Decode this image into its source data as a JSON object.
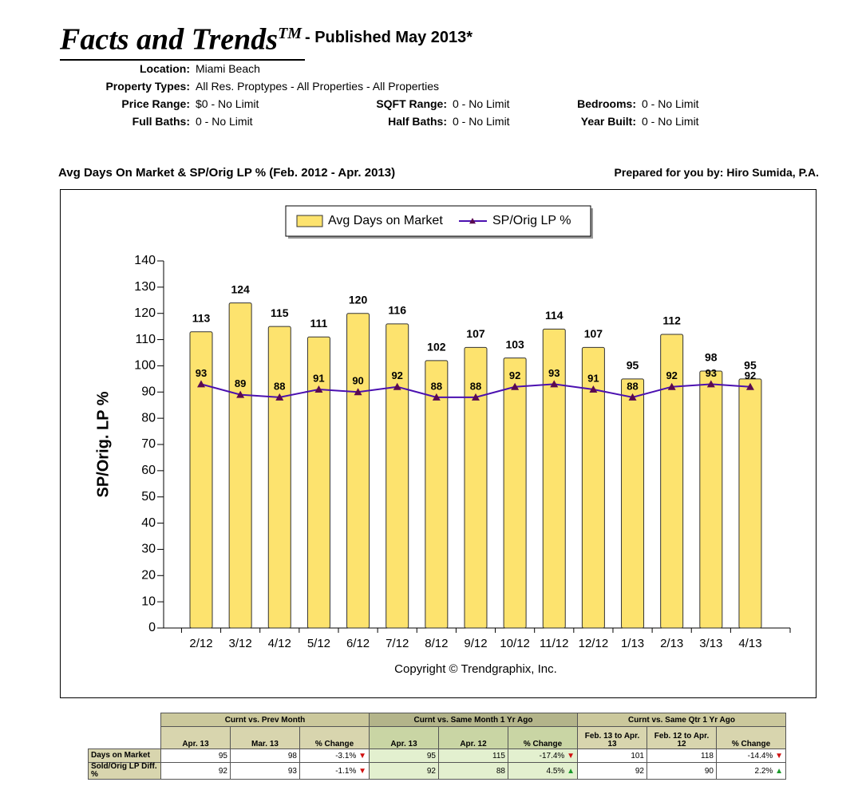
{
  "header": {
    "title": "Facts and Trends",
    "tm": "TM",
    "published": "- Published May 2013*"
  },
  "filters": [
    {
      "label": "Location:",
      "value": "Miami Beach"
    },
    {
      "label": "Property Types:",
      "value": "All Res. Proptypes - All Properties - All Properties"
    },
    {
      "label": "Price Range:",
      "value": "$0 - No Limit"
    },
    {
      "label": "SQFT Range:",
      "value": "0 - No Limit"
    },
    {
      "label": "Bedrooms:",
      "value": "0 - No Limit"
    },
    {
      "label": "Full Baths:",
      "value": "0 - No Limit"
    },
    {
      "label": "Half Baths:",
      "value": "0 - No Limit"
    },
    {
      "label": "Year Built:",
      "value": "0 - No Limit"
    }
  ],
  "chart_data": {
    "type": "bar",
    "title": "Avg Days On Market & SP/Orig LP % (Feb. 2012 - Apr. 2013)",
    "prepared": "Prepared for you by: Hiro Sumida, P.A.",
    "y_label": "SP/Orig. LP %",
    "copyright": "Copyright © Trendgraphix, Inc.",
    "categories": [
      "2/12",
      "3/12",
      "4/12",
      "5/12",
      "6/12",
      "7/12",
      "8/12",
      "9/12",
      "10/12",
      "11/12",
      "12/12",
      "1/13",
      "2/13",
      "3/13",
      "4/13"
    ],
    "series": [
      {
        "name": "Avg Days on Market",
        "type": "bar",
        "color": "#fde36e",
        "values": [
          113,
          124,
          115,
          111,
          120,
          116,
          102,
          107,
          103,
          114,
          107,
          95,
          112,
          98,
          95
        ]
      },
      {
        "name": "SP/Orig LP %",
        "type": "line",
        "color": "#4b10b0",
        "values": [
          93,
          89,
          88,
          91,
          90,
          92,
          88,
          88,
          92,
          93,
          91,
          88,
          92,
          93,
          92
        ]
      }
    ],
    "ylim": [
      0,
      140
    ],
    "yticks": [
      0,
      10,
      20,
      30,
      40,
      50,
      60,
      70,
      80,
      90,
      100,
      110,
      120,
      130,
      140
    ]
  },
  "table": {
    "groups": [
      "Curnt vs. Prev Month",
      "Curnt vs. Same Month 1 Yr Ago",
      "Curnt vs. Same Qtr 1 Yr Ago"
    ],
    "columns": [
      "Apr. 13",
      "Mar. 13",
      "% Change",
      "Apr. 13",
      "Apr. 12",
      "% Change",
      "Feb. 13 to Apr. 13",
      "Feb. 12 to Apr. 12",
      "% Change"
    ],
    "rows": [
      [
        "Days on Market",
        95,
        98,
        "-3.1%",
        95,
        115,
        "-17.4%",
        101,
        118,
        "-14.4%"
      ],
      [
        "Sold/Orig LP Diff. %",
        92,
        93,
        "-1.1%",
        92,
        88,
        "4.5%",
        92,
        90,
        "2.2%"
      ]
    ]
  }
}
